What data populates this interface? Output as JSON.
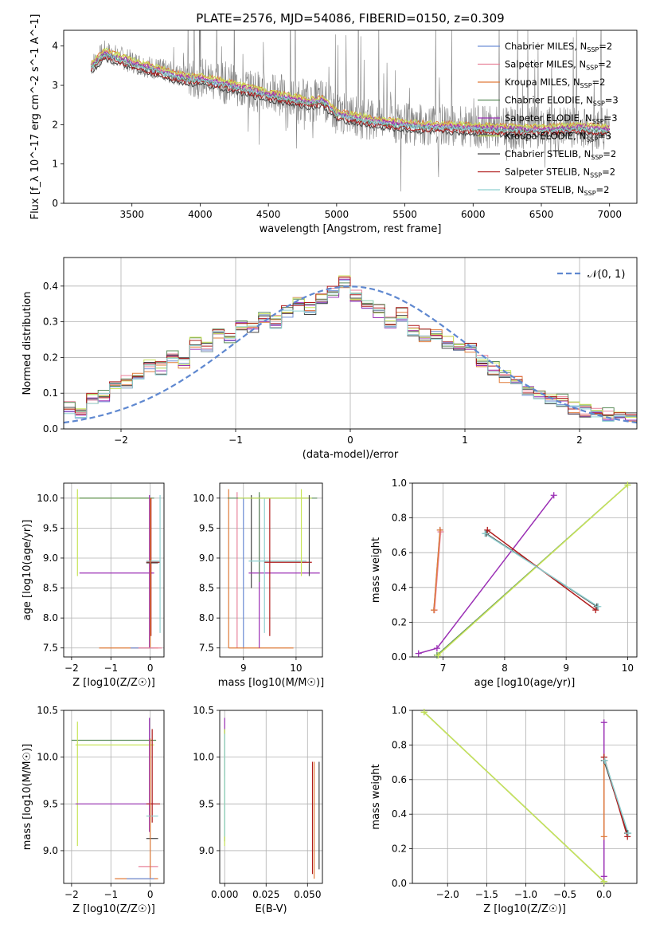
{
  "figure": {
    "title": "PLATE=2576, MJD=54086, FIBERID=0150, z=0.309"
  },
  "models": [
    {
      "name": "Chabrier MILES",
      "nssp": "2",
      "color": "#6f8fd8"
    },
    {
      "name": "Salpeter MILES",
      "nssp": "2",
      "color": "#e8829a"
    },
    {
      "name": "Kroupa MILES",
      "nssp": "2",
      "color": "#e07b39"
    },
    {
      "name": "Chabrier ELODIE",
      "nssp": "3",
      "color": "#5b8c5a"
    },
    {
      "name": "Salpeter ELODIE",
      "nssp": "3",
      "color": "#9b30b5"
    },
    {
      "name": "Kroupa ELODIE",
      "nssp": "3",
      "color": "#c9e55a"
    },
    {
      "name": "Chabrier STELIB",
      "nssp": "2",
      "color": "#454545"
    },
    {
      "name": "Salpeter STELIB",
      "nssp": "2",
      "color": "#b01c1c"
    },
    {
      "name": "Kroupa STELIB",
      "nssp": "2",
      "color": "#8fd0d0"
    }
  ],
  "chart_data": [
    {
      "id": "spectrum",
      "type": "line",
      "xlabel": "wavelength [Angstrom, rest frame]",
      "ylabel": "Flux [f_λ 10^-17 erg cm^-2 s^-1 A^-1]",
      "xlim": [
        3000,
        7200
      ],
      "ylim": [
        0,
        4.4
      ],
      "xticks": [
        3500,
        4000,
        4500,
        5000,
        5500,
        6000,
        6500,
        7000
      ],
      "yticks": [
        0,
        1,
        2,
        3,
        4
      ],
      "grid": false,
      "legend": "right",
      "data_color": "#808080",
      "data_range": [
        3200,
        7000
      ],
      "model_continuum": {
        "x": [
          3200,
          3300,
          3500,
          3700,
          3900,
          4000,
          4200,
          4500,
          4800,
          4900,
          5000,
          5300,
          5600,
          6000,
          6400,
          6800,
          7000
        ],
        "y": [
          3.5,
          3.85,
          3.6,
          3.4,
          3.2,
          3.2,
          3.05,
          2.8,
          2.6,
          2.65,
          2.3,
          2.1,
          2.0,
          1.95,
          1.9,
          1.95,
          1.9
        ]
      }
    },
    {
      "id": "residuals",
      "type": "line",
      "xlabel": "(data-model)/error",
      "ylabel": "Normed distribution",
      "xlim": [
        -2.5,
        2.5
      ],
      "ylim": [
        0,
        0.48
      ],
      "xticks": [
        -2,
        -1,
        0,
        1,
        2
      ],
      "yticks": [
        0.0,
        0.1,
        0.2,
        0.3,
        0.4
      ],
      "grid": true,
      "legend": "top-right",
      "gauss_label": "𝒩(0, 1)",
      "gauss_color": "#5f88d0",
      "hist": {
        "x": [
          -2.5,
          -2.4,
          -2.3,
          -2.2,
          -2.1,
          -2.0,
          -1.9,
          -1.8,
          -1.7,
          -1.6,
          -1.5,
          -1.4,
          -1.3,
          -1.2,
          -1.1,
          -1.0,
          -0.9,
          -0.8,
          -0.7,
          -0.6,
          -0.5,
          -0.4,
          -0.3,
          -0.2,
          -0.1,
          0.0,
          0.1,
          0.2,
          0.3,
          0.4,
          0.5,
          0.6,
          0.7,
          0.8,
          0.9,
          1.0,
          1.1,
          1.2,
          1.3,
          1.4,
          1.5,
          1.6,
          1.7,
          1.8,
          1.9,
          2.0,
          2.1,
          2.2,
          2.3,
          2.4
        ],
        "values": [
          0.06,
          0.05,
          0.08,
          0.09,
          0.12,
          0.13,
          0.15,
          0.18,
          0.17,
          0.2,
          0.19,
          0.24,
          0.23,
          0.27,
          0.25,
          0.29,
          0.28,
          0.31,
          0.3,
          0.33,
          0.35,
          0.34,
          0.36,
          0.38,
          0.41,
          0.37,
          0.35,
          0.33,
          0.3,
          0.32,
          0.28,
          0.26,
          0.27,
          0.24,
          0.22,
          0.23,
          0.19,
          0.17,
          0.15,
          0.14,
          0.11,
          0.1,
          0.09,
          0.08,
          0.06,
          0.05,
          0.04,
          0.04,
          0.03,
          0.04
        ]
      }
    },
    {
      "id": "age-vs-Z",
      "type": "scatter",
      "xlabel": "Z [log10(Z/Z☉)]",
      "ylabel": "age  [log10(age/yr)]",
      "xlim": [
        -2.2,
        0.35
      ],
      "ylim": [
        7.35,
        10.25
      ],
      "xticks": [
        -2,
        -1,
        0
      ],
      "yticks": [
        7.5,
        8.0,
        8.5,
        9.0,
        9.5,
        10.0
      ],
      "grid": true
    },
    {
      "id": "age-vs-mass",
      "type": "scatter",
      "xlabel": "mass [log10(M/M☉)]",
      "ylabel": "",
      "xlim": [
        8.55,
        10.5
      ],
      "ylim": [
        7.35,
        10.25
      ],
      "xticks": [
        9,
        10
      ],
      "yticks": [
        7.5,
        8.0,
        8.5,
        9.0,
        9.5,
        10.0
      ],
      "grid": true
    },
    {
      "id": "weight-vs-age",
      "type": "line",
      "xlabel": "age  [log10(age/yr)]",
      "ylabel": "mass weight",
      "xlim": [
        6.5,
        10.15
      ],
      "ylim": [
        0,
        1
      ],
      "xticks": [
        7,
        8,
        9,
        10
      ],
      "yticks": [
        0.0,
        0.2,
        0.4,
        0.6,
        0.8,
        1.0
      ],
      "grid": true,
      "series": [
        {
          "model": 0,
          "x": [
            6.85,
            6.95
          ],
          "y": [
            0.27,
            0.73
          ]
        },
        {
          "model": 1,
          "x": [
            6.86,
            6.96
          ],
          "y": [
            0.27,
            0.72
          ]
        },
        {
          "model": 2,
          "x": [
            6.85,
            6.95
          ],
          "y": [
            0.27,
            0.73
          ]
        },
        {
          "model": 3,
          "x": [
            6.9,
            10.0
          ],
          "y": [
            0.01,
            0.99
          ]
        },
        {
          "model": 4,
          "x": [
            6.6,
            6.9,
            8.8
          ],
          "y": [
            0.02,
            0.05,
            0.93
          ]
        },
        {
          "model": 5,
          "x": [
            6.92,
            10.0
          ],
          "y": [
            0.01,
            0.99
          ]
        },
        {
          "model": 6,
          "x": [
            7.7,
            9.5
          ],
          "y": [
            0.71,
            0.29
          ]
        },
        {
          "model": 7,
          "x": [
            7.72,
            9.48
          ],
          "y": [
            0.73,
            0.27
          ]
        },
        {
          "model": 8,
          "x": [
            7.68,
            9.52
          ],
          "y": [
            0.71,
            0.29
          ]
        }
      ]
    },
    {
      "id": "mass-vs-Z",
      "type": "scatter",
      "xlabel": "Z [log10(Z/Z☉)]",
      "ylabel": "mass [log10(M/M☉)]",
      "xlim": [
        -2.2,
        0.35
      ],
      "ylim": [
        8.65,
        10.5
      ],
      "xticks": [
        -2,
        -1,
        0
      ],
      "yticks": [
        9.0,
        9.5,
        10.0,
        10.5
      ],
      "grid": true
    },
    {
      "id": "mass-vs-ebv",
      "type": "scatter",
      "xlabel": "E(B-V)",
      "ylabel": "",
      "xlim": [
        -0.003,
        0.059
      ],
      "ylim": [
        8.65,
        10.5
      ],
      "xticks": [
        0.0,
        0.025,
        0.05
      ],
      "xtick_labels": [
        "0.000",
        "0.025",
        "0.050"
      ],
      "yticks": [
        9.0,
        9.5,
        10.0,
        10.5
      ],
      "grid": true
    },
    {
      "id": "weight-vs-Z",
      "type": "line",
      "xlabel": "Z [log10(Z/Z☉)]",
      "ylabel": "mass weight",
      "xlim": [
        -2.45,
        0.42
      ],
      "ylim": [
        0,
        1
      ],
      "xticks": [
        -2.0,
        -1.5,
        -1.0,
        -0.5,
        0.0
      ],
      "xtick_labels": [
        "−2.0",
        "−1.5",
        "−1.0",
        "−0.5",
        "0.0"
      ],
      "yticks": [
        0.0,
        0.2,
        0.4,
        0.6,
        0.8,
        1.0
      ],
      "grid": true,
      "series": [
        {
          "model": 3,
          "x": [
            -2.3,
            0.0
          ],
          "y": [
            0.99,
            0.01
          ]
        },
        {
          "model": 5,
          "x": [
            -2.3,
            0.0
          ],
          "y": [
            0.99,
            0.01
          ]
        },
        {
          "model": 4,
          "x": [
            0.0,
            0.0
          ],
          "y": [
            0.04,
            0.93
          ]
        },
        {
          "model": 2,
          "x": [
            0.0,
            0.0
          ],
          "y": [
            0.27,
            0.73
          ]
        },
        {
          "model": 6,
          "x": [
            0.0,
            0.3
          ],
          "y": [
            0.71,
            0.29
          ]
        },
        {
          "model": 7,
          "x": [
            0.0,
            0.3
          ],
          "y": [
            0.73,
            0.27
          ]
        },
        {
          "model": 8,
          "x": [
            0.01,
            0.31
          ],
          "y": [
            0.71,
            0.29
          ]
        }
      ]
    }
  ]
}
